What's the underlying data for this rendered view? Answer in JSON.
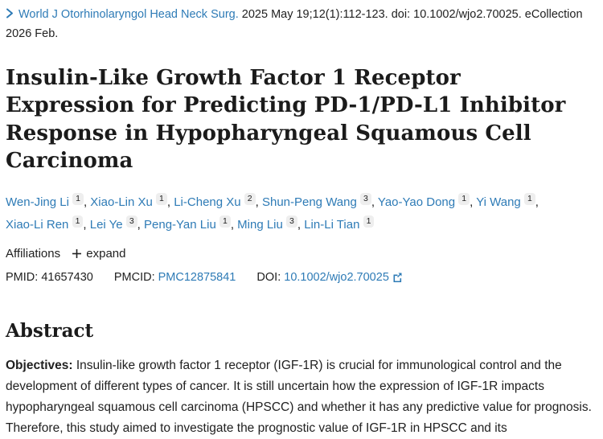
{
  "citation": {
    "journal": "World J Otorhinolaryngol Head Neck Surg.",
    "details": "2025 May 19;12(1):112-123. doi: 10.1002/wjo2.70025. eCollection 2026 Feb."
  },
  "title": "Insulin-Like Growth Factor 1 Receptor Expression for Predicting PD-1/PD-L1 Inhibitor Response in Hypopharyngeal Squamous Cell Carcinoma",
  "authors": {
    "separator": ",",
    "list": [
      {
        "name": "Wen-Jing Li",
        "affiliation": "1"
      },
      {
        "name": "Xiao-Lin Xu",
        "affiliation": "1"
      },
      {
        "name": "Li-Cheng Xu",
        "affiliation": "2"
      },
      {
        "name": "Shun-Peng Wang",
        "affiliation": "3"
      },
      {
        "name": "Yao-Yao Dong",
        "affiliation": "1"
      },
      {
        "name": "Yi Wang",
        "affiliation": "1"
      },
      {
        "name": "Xiao-Li Ren",
        "affiliation": "1"
      },
      {
        "name": "Lei Ye",
        "affiliation": "3"
      },
      {
        "name": "Peng-Yan Liu",
        "affiliation": "1"
      },
      {
        "name": "Ming Liu",
        "affiliation": "3"
      },
      {
        "name": "Lin-Li Tian",
        "affiliation": "1"
      }
    ]
  },
  "affiliations": {
    "label": "Affiliations",
    "expand_label": "expand"
  },
  "identifiers": {
    "pmid_label": "PMID:",
    "pmid": "41657430",
    "pmcid_label": "PMCID:",
    "pmcid": "PMC12875841",
    "doi_label": "DOI:",
    "doi": "10.1002/wjo2.70025"
  },
  "abstract": {
    "heading": "Abstract",
    "objectives_label": "Objectives:",
    "objectives_text": "Insulin-like growth factor 1 receptor (IGF-1R) is crucial for immunological control and the development of different types of cancer. It is still uncertain how the expression of IGF-1R impacts hypopharyngeal squamous cell carcinoma (HPSCC) and whether it has any predictive value for prognosis. Therefore, this study aimed to investigate the prognostic value of IGF-1R in HPSCC and its"
  },
  "colors": {
    "link_blue": "#2e7bb6",
    "text_dark": "#212121",
    "badge_background": "#eeeeee"
  }
}
